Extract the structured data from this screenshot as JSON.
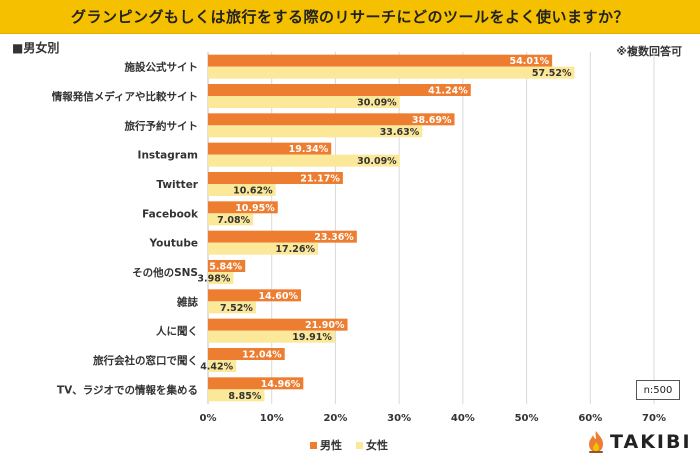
{
  "title": "グランピングもしくは旅行をする際のリサーチにどのツールをよく使いますか？",
  "subtitle": "■男女別",
  "note": "※複数回答可",
  "sample_size": "n:500",
  "brand": {
    "name": "TAKIBI",
    "icon": "flame-logo-icon"
  },
  "colors": {
    "male": "#ed7d31",
    "female": "#fce899",
    "title_bg": "#f5c000",
    "grid": "#d9d9d9",
    "male_label": "#ffffff",
    "female_label": "#333333"
  },
  "chart_data": {
    "type": "bar",
    "orientation": "horizontal",
    "categories": [
      "施設公式サイト",
      "情報発信メディアや比較サイト",
      "旅行予約サイト",
      "Instagram",
      "Twitter",
      "Facebook",
      "Youtube",
      "その他のSNS",
      "雑誌",
      "人に聞く",
      "旅行会社の窓口で聞く",
      "TV、ラジオでの情報を集める"
    ],
    "series": [
      {
        "name": "男性",
        "values": [
          54.01,
          41.24,
          38.69,
          19.34,
          21.17,
          10.95,
          23.36,
          5.84,
          14.6,
          21.9,
          12.04,
          14.96
        ]
      },
      {
        "name": "女性",
        "values": [
          57.52,
          30.09,
          33.63,
          30.09,
          10.62,
          7.08,
          17.26,
          3.98,
          7.52,
          19.91,
          4.42,
          8.85
        ]
      }
    ],
    "value_labels": [
      [
        "54.01%",
        "41.24%",
        "38.69%",
        "19.34%",
        "21.17%",
        "10.95%",
        "23.36%",
        "5.84%",
        "14.60%",
        "21.90%",
        "12.04%",
        "14.96%"
      ],
      [
        "57.52%",
        "30.09%",
        "33.63%",
        "30.09%",
        "10.62%",
        "7.08%",
        "17.26%",
        "3.98%",
        "7.52%",
        "19.91%",
        "4.42%",
        "8.85%"
      ]
    ],
    "xlim": [
      0,
      70
    ],
    "xticks": [
      0,
      10,
      20,
      30,
      40,
      50,
      60,
      70
    ],
    "xtick_labels": [
      "0%",
      "10%",
      "20%",
      "30%",
      "40%",
      "50%",
      "60%",
      "70%"
    ],
    "grid": true,
    "legend_position": "bottom"
  }
}
